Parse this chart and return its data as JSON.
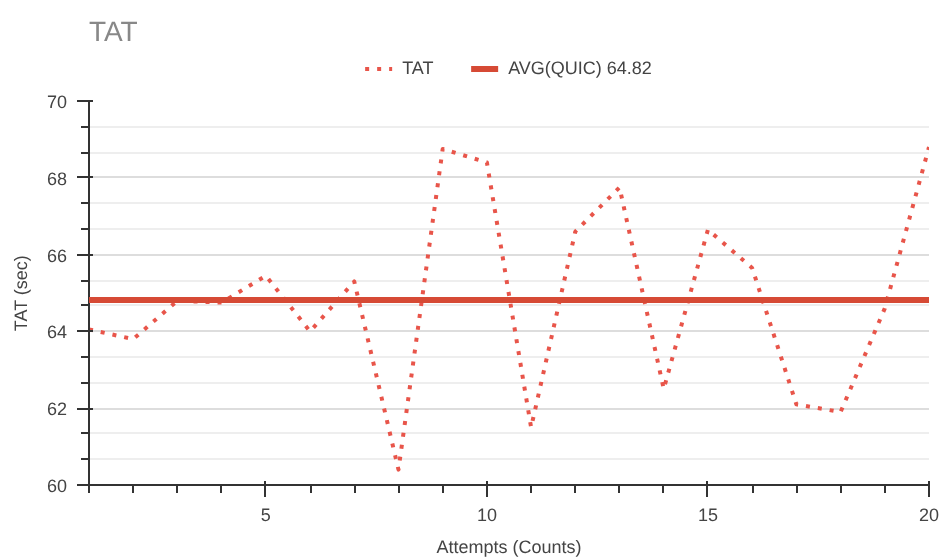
{
  "chart_data": {
    "type": "line",
    "title": "TAT",
    "xlabel": "Attempts (Counts)",
    "ylabel": "TAT (sec)",
    "x": [
      1,
      2,
      3,
      4,
      5,
      6,
      7,
      8,
      9,
      10,
      11,
      12,
      13,
      14,
      15,
      16,
      17,
      18,
      19,
      20
    ],
    "series": [
      {
        "name": "TAT",
        "color": "#e8554a",
        "line_style": "dotted",
        "values": [
          64.05,
          63.8,
          64.8,
          64.75,
          65.45,
          64.0,
          65.3,
          60.4,
          68.75,
          68.4,
          61.5,
          66.6,
          67.75,
          62.5,
          66.65,
          65.65,
          62.1,
          61.9,
          64.6,
          68.8
        ]
      }
    ],
    "ref_lines": [
      {
        "axis": "y",
        "value": 64.82,
        "label": "AVG(QUIC) 64.82",
        "color": "#d64a35",
        "line_style": "solid"
      }
    ],
    "xlim": [
      1,
      20
    ],
    "ylim": [
      60,
      70
    ],
    "xticks": [
      5,
      10,
      15,
      20
    ],
    "yticks": [
      60,
      62,
      64,
      66,
      68,
      70
    ],
    "grid": "y",
    "legend": "top",
    "marker": "none"
  }
}
